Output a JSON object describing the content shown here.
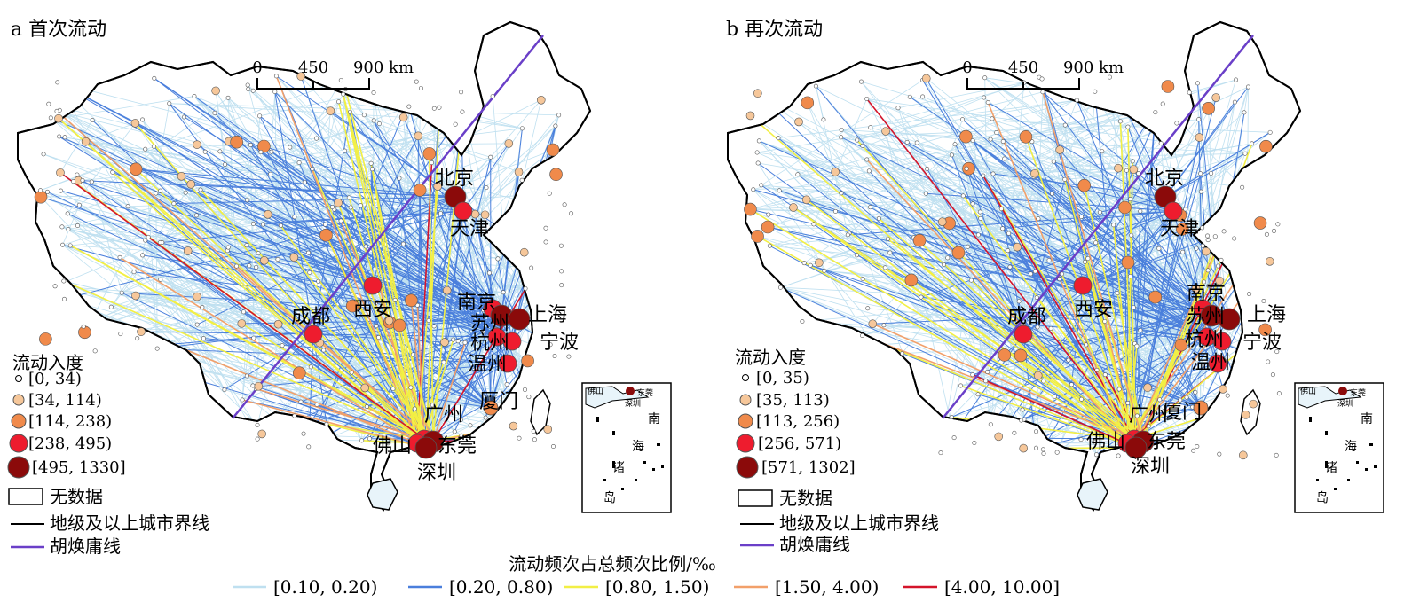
{
  "panels": [
    {
      "id": "a",
      "title": "a 首次流动",
      "scale_bar": {
        "ticks": [
          "0",
          "450",
          "900 km"
        ]
      },
      "legend_title": "流动入度",
      "in_degree_classes": [
        "[0, 34)",
        "[34, 114)",
        "[114, 238)",
        "[238, 495)",
        "[495, 1330]"
      ],
      "no_data_label": "无数据",
      "boundary_label": "地级及以上城市界线",
      "hu_line_label": "胡焕庸线",
      "cities": [
        "北京",
        "天津",
        "西安",
        "成都",
        "南京",
        "苏州",
        "上海",
        "杭州",
        "宁波",
        "温州",
        "厦门",
        "广州",
        "佛山",
        "东莞",
        "深圳"
      ],
      "inset_labels": [
        "南",
        "海",
        "诸",
        "岛"
      ],
      "inset_cities": [
        "佛山",
        "东莞",
        "深圳"
      ]
    },
    {
      "id": "b",
      "title": "b 再次流动",
      "scale_bar": {
        "ticks": [
          "0",
          "450",
          "900 km"
        ]
      },
      "legend_title": "流动入度",
      "in_degree_classes": [
        "[0, 35)",
        "[35, 113)",
        "[113, 256)",
        "[256, 571)",
        "[571, 1302]"
      ],
      "no_data_label": "无数据",
      "boundary_label": "地级及以上城市界线",
      "hu_line_label": "胡焕庸线",
      "cities": [
        "北京",
        "天津",
        "西安",
        "成都",
        "南京",
        "苏州",
        "上海",
        "杭州",
        "宁波",
        "温州",
        "厦门",
        "广州",
        "佛山",
        "东莞",
        "深圳"
      ],
      "inset_labels": [
        "南",
        "海",
        "诸",
        "岛"
      ],
      "inset_cities": [
        "佛山",
        "东莞",
        "深圳"
      ]
    }
  ],
  "flow_legend": {
    "title": "流动频次占总频次比例/‰",
    "classes": [
      {
        "label": "[0.10, 0.20)",
        "color": "#bfe0f0"
      },
      {
        "label": "[0.20, 0.80)",
        "color": "#4a7fdc"
      },
      {
        "label": "[0.80, 1.50)",
        "color": "#f2ef45"
      },
      {
        "label": "[1.50, 4.00)",
        "color": "#f2a06a"
      },
      {
        "label": "[4.00, 10.00]",
        "color": "#d4142a"
      }
    ]
  },
  "node_colors": [
    "#ffffff",
    "#f6c79a",
    "#f08a4b",
    "#ee1c2e",
    "#8b0a0a"
  ],
  "hu_line_color": "#6a3fc8",
  "boundary_color": "#000000"
}
